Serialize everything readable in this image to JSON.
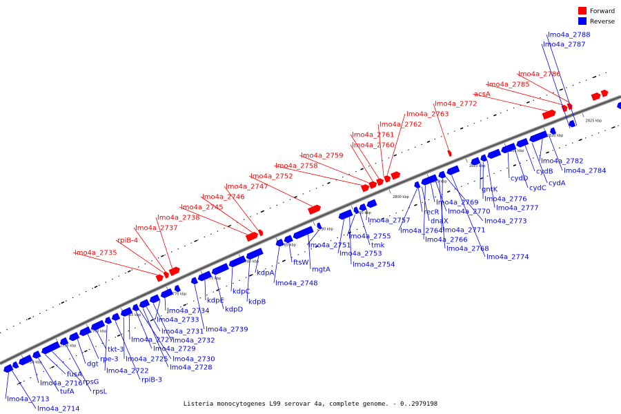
{
  "caption": "Listeria monocytogenes L99 serovar 4a, complete genome. - 0..2979198",
  "legend": [
    {
      "label": "Forward",
      "color": "#ff0000"
    },
    {
      "label": "Reverse",
      "color": "#0000ff"
    }
  ],
  "colors": {
    "forward": "#ff0000",
    "reverse": "#0000ff",
    "backbone": "#555555",
    "minor_ticks": "#000000",
    "label_line_forward": "#ff0000",
    "label_line_reverse": "#0000ff"
  },
  "axis_ticks": [
    "2750 kbp",
    "2755 kbp",
    "2760 kbp",
    "2765 kbp",
    "2770 kbp",
    "2775 kbp",
    "2780 kbp",
    "2785 kbp",
    "2790 kbp",
    "2795 kbp",
    "2800 kbp",
    "2805 kbp",
    "2810 kbp",
    "2815 kbp",
    "2820 kbp",
    "2825 kbp"
  ],
  "forward_labels": [
    "lmo4a_2735",
    "rpiB-4",
    "lmo4a_2737",
    "lmo4a_2738",
    "lmo4a_2745",
    "lmo4a_2746",
    "lmo4a_2747",
    "lmo4a_2752",
    "lmo4a_2758",
    "lmo4a_2759",
    "lmo4a_2760",
    "lmo4a_2761",
    "lmo4a_2762",
    "lmo4a_2763",
    "lmo4a_2772",
    "acsA",
    "lmo4a_2785",
    "lmo4a_2786"
  ],
  "reverse_labels": [
    "lmo4a_2713",
    "lmo4a_2714",
    "lmo4a_2716",
    "tufA",
    "fusA",
    "rpsG",
    "rpsL",
    "dgt",
    "rpe-3",
    "tkt-3",
    "lmo4a_2722",
    "rpiB-3",
    "lmo4a_2725",
    "lmo4a_2727",
    "lmo4a_2728",
    "lmo4a_2729",
    "lmo4a_2730",
    "lmo4a_2731",
    "lmo4a_2732",
    "lmo4a_2733",
    "lmo4a_2734",
    "lmo4a_2739",
    "kdpE",
    "kdpD",
    "kdpC",
    "kdpB",
    "kdpA",
    "lmo4a_2748",
    "ftsW",
    "mgtA",
    "lmo4a_2751",
    "lmo4a_2753",
    "lmo4a_2754",
    "lmo4a_2755",
    "tmk",
    "lmo4a_2757",
    "recR",
    "dnaX",
    "lmo4a_2764",
    "lmo4a_2766",
    "lmo4a_2768",
    "lmo4a_2769",
    "lmo4a_2770",
    "lmo4a_2771",
    "lmo4a_2773",
    "lmo4a_2774",
    "gntK",
    "lmo4a_2776",
    "lmo4a_2777",
    "cydD",
    "cydC",
    "cydB",
    "cydA",
    "lmo4a_2782",
    "lmo4a_2784",
    "lmo4a_2787",
    "lmo4a_2788"
  ]
}
